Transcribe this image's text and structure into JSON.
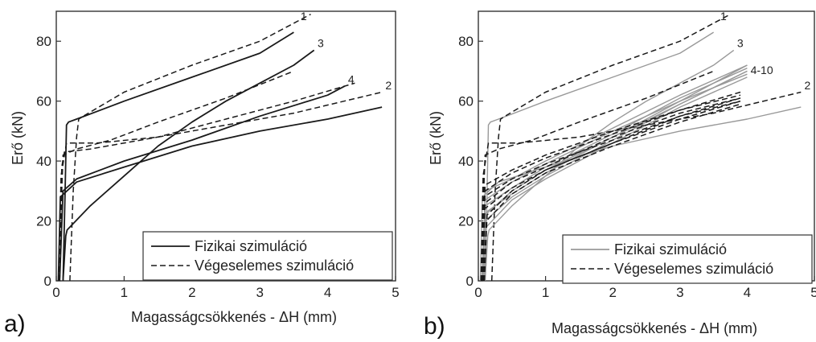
{
  "chart_data": [
    {
      "panel_label": "a)",
      "type": "line",
      "xlabel": "Magasságcsökkenés - ΔH (mm)",
      "ylabel": "Erő (kN)",
      "xlim": [
        0,
        5
      ],
      "ylim": [
        0,
        90
      ],
      "xticks": [
        0,
        1,
        2,
        3,
        4,
        5
      ],
      "yticks": [
        0,
        20,
        40,
        60,
        80
      ],
      "legend": {
        "position": "bottom-right",
        "entries": [
          {
            "label": "Fizikai szimuláció",
            "style": "solid"
          },
          {
            "label": "Végeselemes szimuláció",
            "style": "dashed"
          }
        ]
      },
      "series": [
        {
          "name": "1",
          "style": "solid",
          "color": "#1a1a1a",
          "x": [
            0.1,
            0.13,
            0.15,
            0.18,
            0.3,
            1.0,
            2.0,
            3.0,
            3.5
          ],
          "y": [
            0,
            30,
            52,
            53,
            54,
            60,
            68,
            76,
            83
          ]
        },
        {
          "name": "1",
          "style": "dashed",
          "color": "#1a1a1a",
          "x": [
            0.2,
            0.25,
            0.3,
            0.33,
            0.4,
            1.0,
            2.0,
            3.0,
            3.75
          ],
          "y": [
            0,
            30,
            48,
            54,
            55,
            63,
            72,
            80,
            89
          ]
        },
        {
          "name": "3",
          "style": "solid",
          "color": "#1a1a1a",
          "x": [
            0.1,
            0.14,
            0.16,
            0.5,
            1.0,
            1.5,
            2.0,
            2.5,
            3.0,
            3.5,
            3.8
          ],
          "y": [
            0,
            15,
            17,
            25,
            35,
            45,
            53,
            60,
            66,
            72,
            77
          ]
        },
        {
          "name": "3",
          "style": "dashed",
          "color": "#1a1a1a",
          "x": [
            0.05,
            0.08,
            0.1,
            0.3,
            0.8,
            1.5,
            2.5,
            3.5
          ],
          "y": [
            0,
            30,
            42,
            44,
            47,
            53,
            61,
            70
          ]
        },
        {
          "name": "4",
          "style": "solid",
          "color": "#1a1a1a",
          "x": [
            0.05,
            0.1,
            0.3,
            1.0,
            2.0,
            3.0,
            4.0,
            4.25
          ],
          "y": [
            0,
            30,
            34,
            40,
            47,
            55,
            62,
            65
          ]
        },
        {
          "name": "4",
          "style": "dashed",
          "color": "#1a1a1a",
          "x": [
            0.05,
            0.08,
            0.12,
            0.5,
            1.5,
            2.5,
            3.5,
            4.4
          ],
          "y": [
            0,
            38,
            43,
            44,
            48,
            54,
            60,
            66
          ]
        },
        {
          "name": "2",
          "style": "solid",
          "color": "#1a1a1a",
          "x": [
            0.03,
            0.06,
            0.3,
            1.0,
            2.0,
            3.0,
            4.0,
            4.8
          ],
          "y": [
            0,
            28,
            33,
            38,
            45,
            50,
            54,
            58
          ]
        },
        {
          "name": "2",
          "style": "dashed",
          "color": "#1a1a1a",
          "x": [
            0.04,
            0.07,
            0.15,
            0.6,
            1.5,
            2.5,
            3.5,
            4.8
          ],
          "y": [
            0,
            35,
            46,
            46,
            48,
            52,
            56,
            63
          ]
        }
      ],
      "annotations": [
        {
          "text": "1",
          "x": 3.6,
          "y": 87
        },
        {
          "text": "3",
          "x": 3.85,
          "y": 78
        },
        {
          "text": "4",
          "x": 4.3,
          "y": 66
        },
        {
          "text": "2",
          "x": 4.85,
          "y": 64
        }
      ]
    },
    {
      "panel_label": "b)",
      "type": "line",
      "xlabel": "Magasságcsökkenés - ΔH (mm)",
      "ylabel": "Erő (kN)",
      "xlim": [
        0,
        5
      ],
      "ylim": [
        0,
        90
      ],
      "xticks": [
        0,
        1,
        2,
        3,
        4,
        5
      ],
      "yticks": [
        0,
        20,
        40,
        60,
        80
      ],
      "legend": {
        "position": "bottom-right",
        "entries": [
          {
            "label": "Fizikai szimuláció",
            "style": "solid-gray"
          },
          {
            "label": "Végeselemes szimuláció",
            "style": "dashed"
          }
        ]
      },
      "series": [
        {
          "name": "1",
          "style": "solid",
          "color": "#999999",
          "x": [
            0.1,
            0.13,
            0.15,
            0.18,
            0.3,
            1.0,
            2.0,
            3.0,
            3.5
          ],
          "y": [
            0,
            30,
            52,
            53,
            54,
            60,
            68,
            76,
            83
          ]
        },
        {
          "name": "1",
          "style": "dashed",
          "color": "#1a1a1a",
          "x": [
            0.2,
            0.25,
            0.3,
            0.33,
            0.4,
            1.0,
            2.0,
            3.0,
            3.75
          ],
          "y": [
            0,
            30,
            48,
            54,
            55,
            63,
            72,
            80,
            89
          ]
        },
        {
          "name": "3",
          "style": "solid",
          "color": "#999999",
          "x": [
            0.1,
            0.14,
            0.16,
            0.5,
            1.0,
            1.5,
            2.0,
            2.5,
            3.0,
            3.5,
            3.8
          ],
          "y": [
            0,
            15,
            17,
            25,
            35,
            45,
            53,
            60,
            66,
            72,
            77
          ]
        },
        {
          "name": "3",
          "style": "dashed",
          "color": "#1a1a1a",
          "x": [
            0.05,
            0.08,
            0.1,
            0.3,
            0.8,
            1.5,
            2.5,
            3.5
          ],
          "y": [
            0,
            30,
            42,
            44,
            47,
            53,
            61,
            70
          ]
        },
        {
          "name": "2",
          "style": "solid",
          "color": "#999999",
          "x": [
            0.03,
            0.06,
            0.3,
            1.0,
            2.0,
            3.0,
            4.0,
            4.8
          ],
          "y": [
            0,
            28,
            33,
            38,
            45,
            50,
            54,
            58
          ]
        },
        {
          "name": "2",
          "style": "dashed",
          "color": "#1a1a1a",
          "x": [
            0.04,
            0.07,
            0.15,
            0.6,
            1.5,
            2.5,
            3.5,
            4.8
          ],
          "y": [
            0,
            35,
            46,
            46,
            48,
            52,
            56,
            63
          ]
        },
        {
          "name": "4-10",
          "style": "solid",
          "color": "#999999",
          "x": [
            0.05,
            0.1,
            0.5,
            1.0,
            2.0,
            3.0,
            4.0
          ],
          "y": [
            0,
            22,
            30,
            37,
            48,
            60,
            72
          ]
        },
        {
          "name": "4-10",
          "style": "solid",
          "color": "#999999",
          "x": [
            0.06,
            0.1,
            0.5,
            1.0,
            2.0,
            3.0,
            4.0
          ],
          "y": [
            0,
            20,
            28,
            35,
            47,
            59,
            70
          ]
        },
        {
          "name": "4-10",
          "style": "solid",
          "color": "#999999",
          "x": [
            0.07,
            0.1,
            0.5,
            1.0,
            2.0,
            3.0,
            4.0
          ],
          "y": [
            0,
            25,
            31,
            38,
            49,
            61,
            71
          ]
        },
        {
          "name": "4-10",
          "style": "solid",
          "color": "#999999",
          "x": [
            0.05,
            0.1,
            0.5,
            1.0,
            2.0,
            3.0,
            4.0
          ],
          "y": [
            0,
            27,
            33,
            39,
            50,
            60,
            69
          ]
        },
        {
          "name": "4-10",
          "style": "solid",
          "color": "#999999",
          "x": [
            0.08,
            0.12,
            0.5,
            1.0,
            2.0,
            3.0,
            4.0
          ],
          "y": [
            0,
            18,
            27,
            34,
            46,
            58,
            68
          ]
        },
        {
          "name": "4-10",
          "style": "solid",
          "color": "#999999",
          "x": [
            0.06,
            0.1,
            0.5,
            1.0,
            2.0,
            3.0,
            4.0
          ],
          "y": [
            0,
            30,
            34,
            40,
            51,
            62,
            72
          ]
        },
        {
          "name": "4-10",
          "style": "solid",
          "color": "#999999",
          "x": [
            0.09,
            0.12,
            0.5,
            1.0,
            2.0,
            3.0,
            4.0
          ],
          "y": [
            0,
            23,
            29,
            36,
            48,
            59,
            70
          ]
        },
        {
          "name": "4-10",
          "style": "dashed",
          "color": "#1a1a1a",
          "x": [
            0.05,
            0.08,
            0.5,
            1.0,
            2.0,
            3.0,
            3.9
          ],
          "y": [
            0,
            28,
            34,
            39,
            47,
            55,
            61
          ]
        },
        {
          "name": "4-10",
          "style": "dashed",
          "color": "#1a1a1a",
          "x": [
            0.06,
            0.09,
            0.5,
            1.0,
            2.0,
            3.0,
            3.9
          ],
          "y": [
            0,
            24,
            31,
            37,
            46,
            54,
            60
          ]
        },
        {
          "name": "4-10",
          "style": "dashed",
          "color": "#1a1a1a",
          "x": [
            0.07,
            0.1,
            0.5,
            1.0,
            2.0,
            3.0,
            3.9
          ],
          "y": [
            0,
            30,
            36,
            41,
            49,
            57,
            62
          ]
        },
        {
          "name": "4-10",
          "style": "dashed",
          "color": "#1a1a1a",
          "x": [
            0.05,
            0.1,
            0.5,
            1.0,
            2.0,
            3.0,
            3.9
          ],
          "y": [
            0,
            26,
            33,
            38,
            48,
            56,
            61
          ]
        },
        {
          "name": "4-10",
          "style": "dashed",
          "color": "#1a1a1a",
          "x": [
            0.08,
            0.12,
            0.5,
            1.0,
            2.0,
            3.0,
            3.9
          ],
          "y": [
            0,
            20,
            29,
            36,
            45,
            53,
            59
          ]
        },
        {
          "name": "4-10",
          "style": "dashed",
          "color": "#1a1a1a",
          "x": [
            0.06,
            0.1,
            0.5,
            1.0,
            2.0,
            3.0,
            3.9
          ],
          "y": [
            0,
            32,
            37,
            42,
            50,
            57,
            63
          ]
        },
        {
          "name": "4-10",
          "style": "dashed",
          "color": "#1a1a1a",
          "x": [
            0.09,
            0.13,
            0.5,
            1.0,
            2.0,
            3.0,
            3.9
          ],
          "y": [
            0,
            22,
            30,
            37,
            46,
            55,
            60
          ]
        }
      ],
      "annotations": [
        {
          "text": "1",
          "x": 3.6,
          "y": 87
        },
        {
          "text": "3",
          "x": 3.85,
          "y": 78
        },
        {
          "text": "4-10",
          "x": 4.05,
          "y": 69
        },
        {
          "text": "2",
          "x": 4.85,
          "y": 64
        }
      ]
    }
  ]
}
